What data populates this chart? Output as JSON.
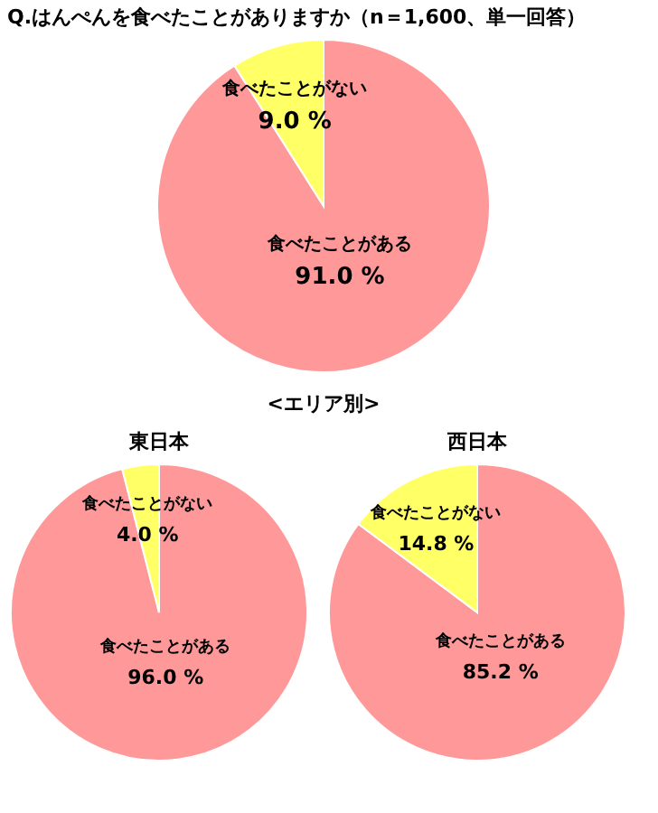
{
  "chart_data": [
    {
      "type": "pie",
      "title": "Q.はんぺんを食べたことがありますか（n＝1,600、単一回答）",
      "categories": [
        "食べたことがある",
        "食べたことがない"
      ],
      "values": [
        91.0,
        9.0
      ],
      "colors": [
        "#ff9999",
        "#ffff66"
      ],
      "value_labels": [
        "91.0 %",
        "9.0 %"
      ]
    },
    {
      "type": "pie",
      "title": "東日本",
      "annotations": [
        "<エリア別>"
      ],
      "categories": [
        "食べたことがある",
        "食べたことがない"
      ],
      "values": [
        96.0,
        4.0
      ],
      "colors": [
        "#ff9999",
        "#ffff66"
      ],
      "value_labels": [
        "96.0 %",
        "4.0 %"
      ]
    },
    {
      "type": "pie",
      "title": "西日本",
      "categories": [
        "食べたことがある",
        "食べたことがない"
      ],
      "values": [
        85.2,
        14.8
      ],
      "colors": [
        "#ff9999",
        "#ffff66"
      ],
      "value_labels": [
        "85.2 %",
        "14.8 %"
      ]
    }
  ]
}
